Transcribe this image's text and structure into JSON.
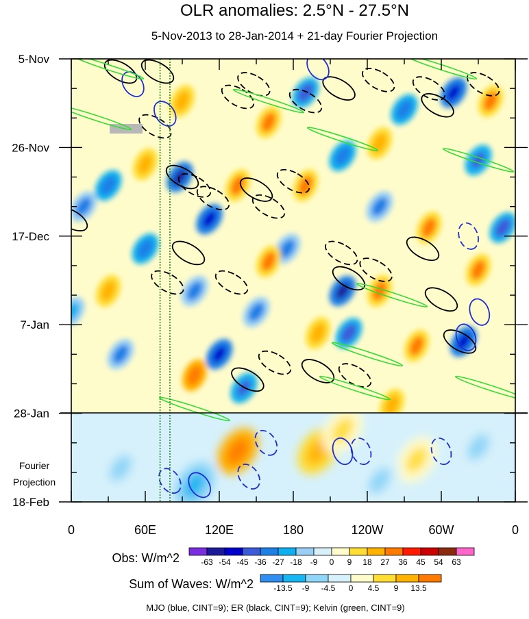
{
  "chart_data": {
    "type": "heatmap",
    "title": "OLR anomalies: 2.5°N - 27.5°N",
    "subtitle": "5-Nov-2013 to 28-Jan-2014 + 21-day Fourier Projection",
    "x_ticks": [
      "0",
      "60E",
      "120E",
      "180",
      "120W",
      "60W",
      "0"
    ],
    "x_tick_lon": [
      0,
      60,
      120,
      180,
      240,
      300,
      360
    ],
    "y_ticks": [
      "5-Nov",
      "26-Nov",
      "17-Dec",
      "7-Jan",
      "28-Jan",
      "18-Feb"
    ],
    "y_tick_day": [
      0,
      21,
      42,
      63,
      84,
      105
    ],
    "observation_end_day": 84,
    "projection_label": [
      "Fourier",
      "Projection"
    ],
    "obs_colorbar": {
      "label": "Obs: W/m^2",
      "levels": [
        "-63",
        "-54",
        "-45",
        "-36",
        "-27",
        "-18",
        "-9",
        "0",
        "9",
        "18",
        "27",
        "36",
        "45",
        "54",
        "63"
      ],
      "colors": [
        "#7b2ee0",
        "#1a1a9a",
        "#0000cc",
        "#3b5bd9",
        "#1e7fe6",
        "#10b0f0",
        "#9ad0f5",
        "#d8f0fa",
        "#fffccc",
        "#ffdd33",
        "#ffb300",
        "#ff7b00",
        "#ff1a00",
        "#cc0000",
        "#8a2b10",
        "#ff66cc"
      ]
    },
    "sum_colorbar": {
      "label": "Sum of Waves: W/m^2",
      "levels": [
        "-13.5",
        "-9",
        "-4.5",
        "0",
        "4.5",
        "9",
        "13.5"
      ],
      "colors": [
        "#2f8ef0",
        "#17b5f2",
        "#8fd6f7",
        "#d6f1fb",
        "#fffccc",
        "#ffdd33",
        "#ffb300",
        "#ff7b00"
      ]
    },
    "footer": "MJO (blue, CINT=9); ER (black, CINT=9); Kelvin (green, CINT=9)",
    "contour_colors": {
      "mjo": "#1f2fd0",
      "er": "#000000",
      "kelvin": "#33dd33"
    },
    "reference_lines_lon": [
      72,
      80
    ],
    "mjo_contours": [
      {
        "lon": 200,
        "day": 2,
        "sign": 1
      },
      {
        "lon": 50,
        "day": 6,
        "sign": 1
      },
      {
        "lon": 76,
        "day": 13,
        "sign": 1
      },
      {
        "lon": 322,
        "day": 42,
        "sign": -1
      },
      {
        "lon": 331,
        "day": 60,
        "sign": 1
      },
      {
        "lon": 320,
        "day": 66,
        "sign": 1
      },
      {
        "lon": 158,
        "day": 91,
        "sign": -1
      },
      {
        "lon": 220,
        "day": 93,
        "sign": 1
      },
      {
        "lon": 235,
        "day": 93,
        "sign": -1
      },
      {
        "lon": 300,
        "day": 93,
        "sign": -1
      },
      {
        "lon": 80,
        "day": 100,
        "sign": -1
      },
      {
        "lon": 144,
        "day": 99,
        "sign": -1
      },
      {
        "lon": 104,
        "day": 101,
        "sign": 1
      }
    ],
    "er_contours": [
      {
        "lon": 40,
        "day": 3,
        "sign": 1
      },
      {
        "lon": 70,
        "day": 3,
        "sign": 1
      },
      {
        "lon": 148,
        "day": 6,
        "sign": -1
      },
      {
        "lon": 135,
        "day": 9,
        "sign": -1
      },
      {
        "lon": 217,
        "day": 7,
        "sign": 1
      },
      {
        "lon": 249,
        "day": 5,
        "sign": -1
      },
      {
        "lon": 190,
        "day": 10,
        "sign": -1
      },
      {
        "lon": 290,
        "day": 7,
        "sign": -1
      },
      {
        "lon": 297,
        "day": 11,
        "sign": 1
      },
      {
        "lon": 334,
        "day": 6,
        "sign": -1
      },
      {
        "lon": 68,
        "day": 16,
        "sign": -1
      },
      {
        "lon": 90,
        "day": 28,
        "sign": 1
      },
      {
        "lon": 100,
        "day": 30,
        "sign": -1
      },
      {
        "lon": 115,
        "day": 33,
        "sign": -1
      },
      {
        "lon": 150,
        "day": 31,
        "sign": 1
      },
      {
        "lon": 160,
        "day": 35,
        "sign": -1
      },
      {
        "lon": 180,
        "day": 29,
        "sign": -1
      },
      {
        "lon": 219,
        "day": 46,
        "sign": -1
      },
      {
        "lon": 225,
        "day": 52,
        "sign": 1
      },
      {
        "lon": 247,
        "day": 50,
        "sign": -1
      },
      {
        "lon": 285,
        "day": 45,
        "sign": 1
      },
      {
        "lon": 300,
        "day": 57,
        "sign": 1
      },
      {
        "lon": 95,
        "day": 46,
        "sign": 1
      },
      {
        "lon": 78,
        "day": 53,
        "sign": -1
      },
      {
        "lon": 130,
        "day": 53,
        "sign": -1
      },
      {
        "lon": 165,
        "day": 72,
        "sign": -1
      },
      {
        "lon": 143,
        "day": 76,
        "sign": 1
      },
      {
        "lon": 200,
        "day": 74,
        "sign": 1
      },
      {
        "lon": 230,
        "day": 75,
        "sign": -1
      },
      {
        "lon": 315,
        "day": 67,
        "sign": 1
      },
      {
        "lon": 0,
        "day": 38,
        "sign": 1
      }
    ],
    "kelvin_contours": [
      {
        "lon": 30,
        "day": 2
      },
      {
        "lon": 160,
        "day": 10
      },
      {
        "lon": 220,
        "day": 19
      },
      {
        "lon": 330,
        "day": 24
      },
      {
        "lon": 260,
        "day": 56
      },
      {
        "lon": 240,
        "day": 70
      },
      {
        "lon": 230,
        "day": 78
      },
      {
        "lon": 340,
        "day": 78
      },
      {
        "lon": 100,
        "day": 83
      },
      {
        "lon": 20,
        "day": 14
      },
      {
        "lon": 300,
        "day": 2
      }
    ],
    "anomaly_features": [
      {
        "lon": 88,
        "day": 28,
        "value": -60
      },
      {
        "lon": 112,
        "day": 38,
        "value": -50
      },
      {
        "lon": 120,
        "day": 70,
        "value": -50
      },
      {
        "lon": 140,
        "day": 78,
        "value": -45
      },
      {
        "lon": 220,
        "day": 55,
        "value": -55
      },
      {
        "lon": 225,
        "day": 65,
        "value": -40
      },
      {
        "lon": 175,
        "day": 45,
        "value": -30
      },
      {
        "lon": 60,
        "day": 45,
        "value": -35
      },
      {
        "lon": 30,
        "day": 30,
        "value": -35
      },
      {
        "lon": 10,
        "day": 35,
        "value": -30
      },
      {
        "lon": 310,
        "day": 8,
        "value": -50
      },
      {
        "lon": 330,
        "day": 24,
        "value": -45
      },
      {
        "lon": 350,
        "day": 40,
        "value": -40
      },
      {
        "lon": 318,
        "day": 67,
        "value": -50
      },
      {
        "lon": 250,
        "day": 35,
        "value": -30
      },
      {
        "lon": 190,
        "day": 8,
        "value": -40
      },
      {
        "lon": 270,
        "day": 12,
        "value": -35
      },
      {
        "lon": 220,
        "day": 23,
        "value": -35
      },
      {
        "lon": 150,
        "day": 60,
        "value": -30
      },
      {
        "lon": 40,
        "day": 70,
        "value": -30
      },
      {
        "lon": 100,
        "day": 55,
        "value": -30
      },
      {
        "lon": 0,
        "day": 60,
        "value": -20
      },
      {
        "lon": 160,
        "day": 15,
        "value": 30
      },
      {
        "lon": 135,
        "day": 30,
        "value": 28
      },
      {
        "lon": 190,
        "day": 30,
        "value": 30
      },
      {
        "lon": 160,
        "day": 48,
        "value": 30
      },
      {
        "lon": 250,
        "day": 55,
        "value": 30
      },
      {
        "lon": 280,
        "day": 68,
        "value": 30
      },
      {
        "lon": 290,
        "day": 40,
        "value": 28
      },
      {
        "lon": 330,
        "day": 50,
        "value": 30
      },
      {
        "lon": 100,
        "day": 75,
        "value": 35
      },
      {
        "lon": 60,
        "day": 25,
        "value": 25
      },
      {
        "lon": 30,
        "day": 55,
        "value": 25
      },
      {
        "lon": 340,
        "day": 10,
        "value": 30
      },
      {
        "lon": 250,
        "day": 20,
        "value": 25
      },
      {
        "lon": 90,
        "day": 10,
        "value": 25
      },
      {
        "lon": 200,
        "day": 65,
        "value": 25
      },
      {
        "lon": 260,
        "day": 82,
        "value": 25
      }
    ],
    "projection_features": [
      {
        "lon": 135,
        "day": 93,
        "value": 18
      },
      {
        "lon": 200,
        "day": 93,
        "value": 12
      },
      {
        "lon": 220,
        "day": 88,
        "value": 8
      },
      {
        "lon": 280,
        "day": 95,
        "value": 6
      },
      {
        "lon": 100,
        "day": 101,
        "value": -10
      },
      {
        "lon": 40,
        "day": 97,
        "value": -6
      },
      {
        "lon": 250,
        "day": 100,
        "value": -6
      },
      {
        "lon": 330,
        "day": 92,
        "value": -6
      }
    ]
  }
}
